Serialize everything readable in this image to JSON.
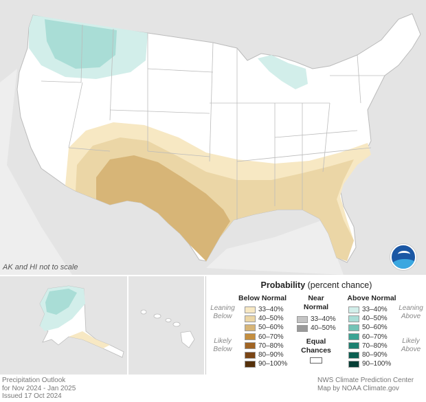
{
  "map": {
    "scale_note": "AK and HI not to scale",
    "logo_text": "NOAA"
  },
  "legend": {
    "title_bold": "Probability",
    "title_rest": "(percent chance)",
    "below_head": "Below Normal",
    "near_head_1": "Near",
    "near_head_2": "Normal",
    "above_head": "Above Normal",
    "leaning_below_1": "Leaning",
    "leaning_below_2": "Below",
    "likely_below_1": "Likely",
    "likely_below_2": "Below",
    "leaning_above_1": "Leaning",
    "leaning_above_2": "Above",
    "likely_above_1": "Likely",
    "likely_above_2": "Above",
    "below": [
      {
        "label": "33–40%",
        "color": "#f7e8c3"
      },
      {
        "label": "40–50%",
        "color": "#ebd6a6"
      },
      {
        "label": "50–60%",
        "color": "#d7b577"
      },
      {
        "label": "60–70%",
        "color": "#c48e3f"
      },
      {
        "label": "70–80%",
        "color": "#a06424"
      },
      {
        "label": "80–90%",
        "color": "#7a4515"
      },
      {
        "label": "90–100%",
        "color": "#55300a"
      }
    ],
    "near": [
      {
        "label": "33–40%",
        "color": "#c4c4c4"
      },
      {
        "label": "40–50%",
        "color": "#9a9a9a"
      }
    ],
    "above": [
      {
        "label": "33–40%",
        "color": "#d2eeea"
      },
      {
        "label": "40–50%",
        "color": "#a9ddd6"
      },
      {
        "label": "50–60%",
        "color": "#73c3b6"
      },
      {
        "label": "60–70%",
        "color": "#3aa393"
      },
      {
        "label": "70–80%",
        "color": "#1c8070"
      },
      {
        "label": "80–90%",
        "color": "#0a5e51"
      },
      {
        "label": "90–100%",
        "color": "#053e35"
      }
    ],
    "equal_1": "Equal",
    "equal_2": "Chances"
  },
  "footer": {
    "line1": "Precipitation Outlook",
    "line2": "for Nov 2024 - Jan 2025",
    "line3": "Issued 17 Oct 2024",
    "credit1": "NWS Climate Prediction Center",
    "credit2": "Map by NOAA Climate.gov"
  }
}
